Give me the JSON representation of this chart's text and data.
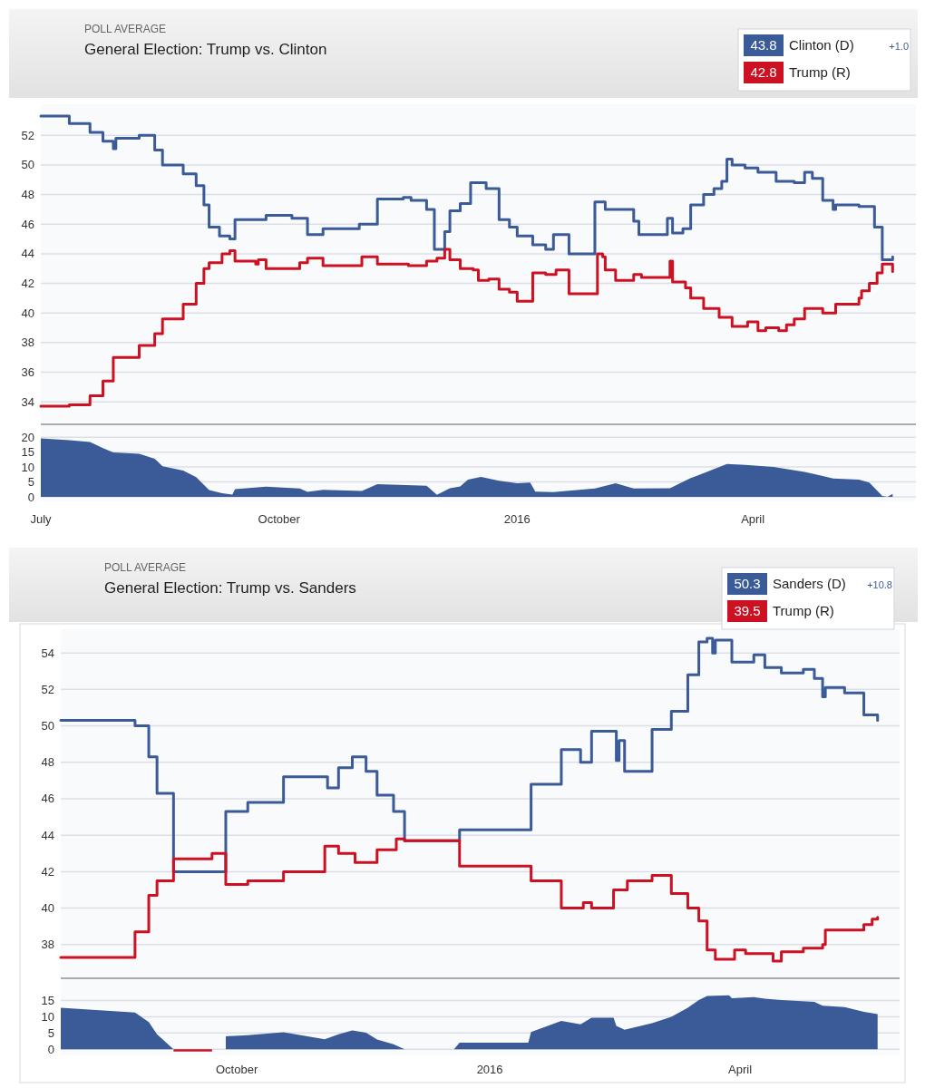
{
  "chart_data": [
    {
      "type": "step",
      "title": "General Election: Trump vs. Clinton",
      "subtitle": "POLL AVERAGE",
      "legend": "top right",
      "annotations": [
        "43.8",
        "42.8",
        "+1.0"
      ],
      "xlim": [
        "2015-07-01",
        "2016-06-03"
      ],
      "ylim": [
        32.6,
        54.1
      ],
      "yticks": [
        34,
        36,
        38,
        40,
        42,
        44,
        46,
        48,
        50,
        52
      ],
      "grid": "y",
      "tick_labels": "y",
      "series": [
        {
          "name": "Clinton (D)",
          "color": "#3a5a98",
          "x": [
            "2015-07-01",
            "2015-07-12",
            "2015-07-20",
            "2015-07-25",
            "2015-07-29",
            "2015-07-30",
            "2015-08-08",
            "2015-08-14",
            "2015-08-17",
            "2015-08-25",
            "2015-08-30",
            "2015-09-02",
            "2015-09-04",
            "2015-09-08",
            "2015-09-12",
            "2015-09-14",
            "2015-09-26",
            "2015-10-06",
            "2015-10-12",
            "2015-10-18",
            "2015-11-01",
            "2015-11-08",
            "2015-11-18",
            "2015-11-21",
            "2015-11-27",
            "2015-11-30",
            "2015-12-04",
            "2015-12-06",
            "2015-12-10",
            "2015-12-14",
            "2015-12-20",
            "2015-12-25",
            "2015-12-29",
            "2016-01-01",
            "2016-01-07",
            "2016-01-12",
            "2016-01-15",
            "2016-01-21",
            "2016-01-31",
            "2016-02-04",
            "2016-02-15",
            "2016-02-17",
            "2016-02-28",
            "2016-03-01",
            "2016-03-05",
            "2016-03-08",
            "2016-03-13",
            "2016-03-17",
            "2016-03-20",
            "2016-03-22",
            "2016-03-24",
            "2016-03-29",
            "2016-04-03",
            "2016-04-10",
            "2016-04-17",
            "2016-04-21",
            "2016-04-24",
            "2016-04-28",
            "2016-05-02",
            "2016-05-03",
            "2016-05-12",
            "2016-05-18",
            "2016-05-21",
            "2016-05-25"
          ],
          "values": [
            53.3,
            52.8,
            52.2,
            51.6,
            51.1,
            51.8,
            52.0,
            51.0,
            50.0,
            49.4,
            48.6,
            47.3,
            45.8,
            45.2,
            45.0,
            46.3,
            46.6,
            46.4,
            45.3,
            45.7,
            46.0,
            47.7,
            47.8,
            47.6,
            47.0,
            44.3,
            45.5,
            46.9,
            47.4,
            48.8,
            48.4,
            46.3,
            45.8,
            45.2,
            44.6,
            44.3,
            45.3,
            44.0,
            47.5,
            47.0,
            46.2,
            45.3,
            46.4,
            45.4,
            45.7,
            47.3,
            48.0,
            48.4,
            48.9,
            50.4,
            50.0,
            49.8,
            49.5,
            48.9,
            48.8,
            49.5,
            49.1,
            47.6,
            47.0,
            47.3,
            47.2,
            45.8,
            43.6,
            43.8
          ]
        },
        {
          "name": "Trump (R)",
          "color": "#cc1122",
          "x": [
            "2015-07-01",
            "2015-07-12",
            "2015-07-20",
            "2015-07-25",
            "2015-07-29",
            "2015-08-08",
            "2015-08-14",
            "2015-08-17",
            "2015-08-25",
            "2015-08-30",
            "2015-09-02",
            "2015-09-04",
            "2015-09-09",
            "2015-09-12",
            "2015-09-14",
            "2015-09-22",
            "2015-09-23",
            "2015-09-26",
            "2015-10-09",
            "2015-10-12",
            "2015-10-18",
            "2015-11-02",
            "2015-11-08",
            "2015-11-20",
            "2015-11-27",
            "2015-12-01",
            "2015-12-04",
            "2015-12-06",
            "2015-12-10",
            "2015-12-15",
            "2015-12-17",
            "2015-12-21",
            "2015-12-25",
            "2015-12-29",
            "2016-01-01",
            "2016-01-07",
            "2016-01-12",
            "2016-01-16",
            "2016-01-21",
            "2016-02-01",
            "2016-02-03",
            "2016-02-04",
            "2016-02-08",
            "2016-02-15",
            "2016-02-18",
            "2016-02-29",
            "2016-03-01",
            "2016-03-06",
            "2016-03-08",
            "2016-03-13",
            "2016-03-19",
            "2016-03-24",
            "2016-03-30",
            "2016-04-03",
            "2016-04-06",
            "2016-04-11",
            "2016-04-14",
            "2016-04-17",
            "2016-04-21",
            "2016-04-28",
            "2016-05-03",
            "2016-05-12",
            "2016-05-13",
            "2016-05-16",
            "2016-05-19",
            "2016-05-21",
            "2016-05-25"
          ],
          "values": [
            33.7,
            33.8,
            34.4,
            35.4,
            37.0,
            37.8,
            38.6,
            39.6,
            40.6,
            42.0,
            43.0,
            43.4,
            44.0,
            44.2,
            43.5,
            43.3,
            43.6,
            43.0,
            43.4,
            43.7,
            43.2,
            43.8,
            43.3,
            43.2,
            43.5,
            43.7,
            44.3,
            43.6,
            43.0,
            42.9,
            42.2,
            42.3,
            41.6,
            41.4,
            40.8,
            42.7,
            42.6,
            42.9,
            41.3,
            44.0,
            43.8,
            42.9,
            42.2,
            42.6,
            42.4,
            43.5,
            42.1,
            41.7,
            41.0,
            40.3,
            39.7,
            39.1,
            39.4,
            38.8,
            39.0,
            38.8,
            39.2,
            39.6,
            40.3,
            40.0,
            40.6,
            41.0,
            41.5,
            42.0,
            42.7,
            43.3,
            42.8
          ]
        }
      ]
    },
    {
      "type": "area",
      "xlim": [
        "2015-07-01",
        "2016-06-03"
      ],
      "ylim": [
        -1.5,
        24
      ],
      "yticks": [
        0,
        5,
        10,
        15,
        20
      ],
      "grid": "y",
      "xticks": [
        {
          "value": "2015-07-01",
          "label": "July"
        },
        {
          "value": "2015-10-01",
          "label": "October"
        },
        {
          "value": "2016-01-01",
          "label": "2016"
        },
        {
          "value": "2016-04-01",
          "label": "April"
        }
      ],
      "series": [
        {
          "color": "#3a5a98",
          "x": [
            "2015-07-01",
            "2015-07-12",
            "2015-07-20",
            "2015-07-25",
            "2015-07-29",
            "2015-08-08",
            "2015-08-14",
            "2015-08-17",
            "2015-08-25",
            "2015-08-30",
            "2015-09-04",
            "2015-09-09",
            "2015-09-13",
            "2015-09-14",
            "2015-09-26",
            "2015-10-09",
            "2015-10-12",
            "2015-10-18",
            "2015-11-02",
            "2015-11-08",
            "2015-11-27",
            "2015-12-01",
            "2015-12-06",
            "2015-12-10",
            "2015-12-13",
            "2015-12-18",
            "2015-12-25",
            "2016-01-01",
            "2016-01-06",
            "2016-01-08",
            "2016-01-15",
            "2016-01-31",
            "2016-02-08",
            "2016-02-15",
            "2016-02-29",
            "2016-03-08",
            "2016-03-14",
            "2016-03-22",
            "2016-03-29",
            "2016-04-09",
            "2016-04-21",
            "2016-04-28",
            "2016-05-02",
            "2016-05-12",
            "2016-05-16",
            "2016-05-21",
            "2016-05-23",
            "2016-05-25"
          ],
          "values": [
            19.6,
            19.0,
            18.4,
            16.3,
            14.9,
            14.4,
            12.8,
            10.3,
            8.8,
            6.6,
            2.3,
            1.2,
            0.8,
            2.6,
            3.4,
            2.8,
            1.7,
            2.4,
            2.0,
            4.3,
            3.7,
            0.7,
            2.9,
            3.5,
            5.8,
            6.7,
            5.4,
            4.6,
            4.8,
            1.8,
            1.6,
            2.8,
            4.6,
            2.8,
            2.9,
            6.3,
            8.3,
            11.0,
            10.7,
            10.0,
            8.4,
            7.0,
            6.2,
            5.8,
            4.8,
            0.3,
            0.0,
            1.0
          ]
        }
      ]
    },
    {
      "type": "step",
      "title": "General Election: Trump vs. Sanders",
      "subtitle": "POLL AVERAGE",
      "legend": "top right",
      "annotations": [
        "50.3",
        "39.5",
        "+10.8"
      ],
      "xlim": [
        "2015-07-29",
        "2016-05-29"
      ],
      "ylim": [
        36.2,
        55.3
      ],
      "yticks": [
        38,
        40,
        42,
        44,
        46,
        48,
        50,
        52,
        54
      ],
      "grid": "y",
      "tick_labels": "y",
      "series": [
        {
          "name": "Sanders (D)",
          "color": "#3a5a98",
          "x": [
            "2015-07-29",
            "2015-08-25",
            "2015-08-30",
            "2015-09-02",
            "2015-09-08",
            "2015-09-27",
            "2015-10-05",
            "2015-10-18",
            "2015-11-03",
            "2015-11-07",
            "2015-11-12",
            "2015-11-17",
            "2015-11-21",
            "2015-11-27",
            "2015-12-01",
            "2015-12-21",
            "2016-01-16",
            "2016-01-27",
            "2016-02-03",
            "2016-02-07",
            "2016-02-16",
            "2016-02-17",
            "2016-02-19",
            "2016-02-29",
            "2016-03-07",
            "2016-03-13",
            "2016-03-17",
            "2016-03-20",
            "2016-03-22",
            "2016-03-23",
            "2016-03-29",
            "2016-04-06",
            "2016-04-10",
            "2016-04-16",
            "2016-04-24",
            "2016-04-28",
            "2016-05-01",
            "2016-05-02",
            "2016-05-09",
            "2016-05-16",
            "2016-05-21"
          ],
          "values": [
            50.3,
            50.0,
            48.3,
            46.3,
            42.0,
            45.3,
            45.8,
            47.2,
            46.6,
            47.7,
            48.3,
            47.5,
            46.2,
            45.3,
            43.7,
            44.3,
            46.8,
            48.7,
            48.0,
            49.7,
            48.1,
            49.2,
            47.5,
            49.8,
            50.8,
            52.8,
            54.6,
            54.8,
            54.0,
            54.7,
            53.5,
            53.9,
            53.2,
            52.9,
            53.1,
            52.6,
            51.6,
            52.1,
            51.8,
            50.6,
            50.3
          ]
        },
        {
          "name": "Trump (R)",
          "color": "#cc1122",
          "x": [
            "2015-07-29",
            "2015-08-25",
            "2015-08-30",
            "2015-09-02",
            "2015-09-08",
            "2015-09-22",
            "2015-09-27",
            "2015-10-05",
            "2015-10-18",
            "2015-11-02",
            "2015-11-07",
            "2015-11-13",
            "2015-11-21",
            "2015-11-28",
            "2015-12-01",
            "2015-12-21",
            "2016-01-16",
            "2016-01-27",
            "2016-02-04",
            "2016-02-07",
            "2016-02-15",
            "2016-02-20",
            "2016-02-29",
            "2016-03-07",
            "2016-03-13",
            "2016-03-17",
            "2016-03-20",
            "2016-03-23",
            "2016-03-30",
            "2016-04-03",
            "2016-04-13",
            "2016-04-16",
            "2016-04-24",
            "2016-05-01",
            "2016-05-02",
            "2016-05-16",
            "2016-05-19",
            "2016-05-21"
          ],
          "values": [
            37.3,
            38.7,
            40.7,
            41.5,
            42.7,
            43.0,
            41.3,
            41.5,
            42.0,
            43.4,
            43.0,
            42.5,
            43.2,
            43.8,
            43.7,
            42.3,
            41.5,
            40.0,
            40.3,
            40.0,
            41.0,
            41.5,
            41.8,
            40.8,
            40.0,
            39.3,
            37.7,
            37.2,
            37.7,
            37.5,
            37.1,
            37.6,
            37.8,
            38.0,
            38.8,
            39.1,
            39.4,
            39.5
          ]
        }
      ]
    },
    {
      "type": "area",
      "xlim": [
        "2015-07-29",
        "2016-05-29"
      ],
      "ylim": [
        -1.9,
        21.6
      ],
      "yticks": [
        0,
        5,
        10,
        15
      ],
      "grid": "y",
      "xticks": [
        {
          "value": "2015-10-01",
          "label": "October"
        },
        {
          "value": "2016-01-01",
          "label": "2016"
        },
        {
          "value": "2016-04-01",
          "label": "April"
        }
      ],
      "series": [
        {
          "color": "#3a5a98",
          "x": [
            "2015-07-29",
            "2015-08-25",
            "2015-08-30",
            "2015-09-02",
            "2015-09-08",
            "2015-09-15",
            "2015-09-27",
            "2015-10-05",
            "2015-10-18",
            "2015-11-02",
            "2015-11-07",
            "2015-11-12",
            "2015-11-17",
            "2015-11-21",
            "2015-11-27",
            "2015-12-01",
            "2015-12-19",
            "2015-12-21",
            "2016-01-15",
            "2016-01-16",
            "2016-01-27",
            "2016-02-03",
            "2016-02-07",
            "2016-02-15",
            "2016-02-16",
            "2016-02-19",
            "2016-02-29",
            "2016-03-07",
            "2016-03-13",
            "2016-03-17",
            "2016-03-20",
            "2016-03-28",
            "2016-03-29",
            "2016-04-06",
            "2016-04-10",
            "2016-04-16",
            "2016-04-28",
            "2016-05-01",
            "2016-05-09",
            "2016-05-16",
            "2016-05-21"
          ],
          "values": [
            12.8,
            11.3,
            8.4,
            4.6,
            0.0,
            null,
            4.0,
            4.3,
            5.2,
            3.1,
            4.6,
            5.8,
            5.1,
            3.0,
            1.5,
            0.0,
            0.0,
            2.0,
            2.0,
            5.3,
            8.7,
            7.7,
            9.7,
            9.7,
            7.2,
            6.0,
            8.0,
            10.0,
            12.8,
            15.2,
            16.4,
            16.6,
            15.7,
            16.1,
            15.6,
            15.2,
            14.6,
            13.4,
            13.0,
            11.5,
            10.8
          ]
        },
        {
          "color": "#cc1122",
          "x": [
            "2015-09-08",
            "2015-09-22"
          ],
          "values": [
            -0.7,
            -0.7
          ]
        }
      ]
    }
  ]
}
